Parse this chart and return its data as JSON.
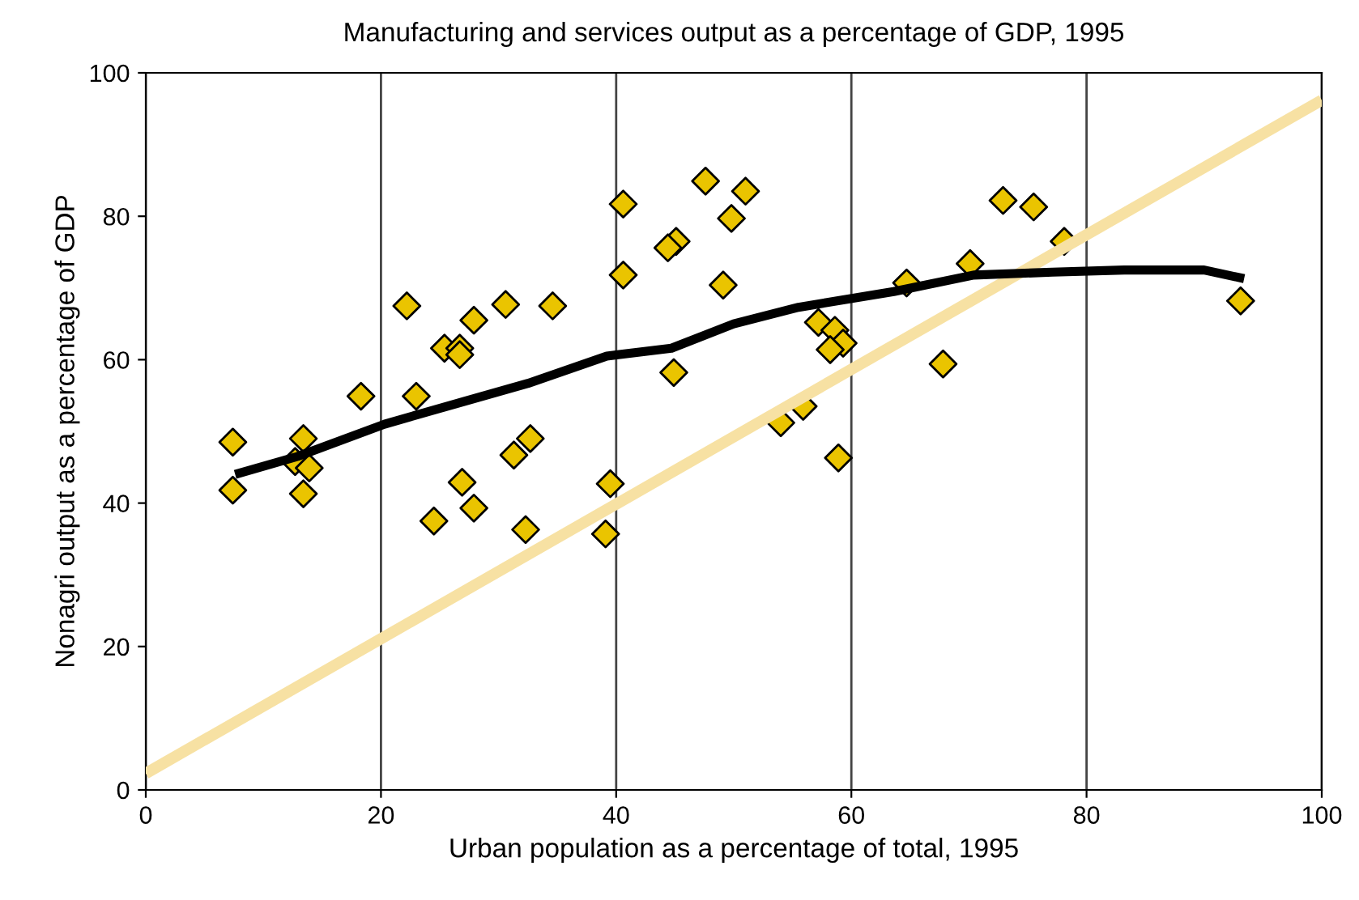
{
  "chart_data": {
    "type": "scatter",
    "title": "Manufacturing and services output as a percentage of GDP, 1995",
    "xlabel": "Urban population as a percentage of total, 1995",
    "ylabel": "Nonagri output as a percentage of GDP",
    "xlim": [
      0,
      100
    ],
    "ylim": [
      0,
      100
    ],
    "xticks": [
      0,
      20,
      40,
      60,
      80,
      100
    ],
    "yticks": [
      0,
      20,
      40,
      60,
      80,
      100
    ],
    "grid": "x",
    "marker": "diamond",
    "series": [
      {
        "color": "#eac400",
        "x": [
          7.4,
          7.4,
          13.4,
          12.7,
          13.9,
          13.4,
          18.3,
          23.0,
          22.2,
          27.9,
          30.6,
          25.4,
          26.7,
          26.7,
          32.7,
          31.3,
          26.9,
          27.9,
          24.5,
          32.3,
          40.6,
          47.6,
          51.0,
          49.8,
          45.1,
          44.4,
          40.6,
          49.1,
          34.6,
          57.2,
          58.6,
          59.3,
          58.2,
          44.9,
          55.9,
          54.0,
          58.9,
          39.5,
          39.1,
          64.7,
          72.9,
          75.5,
          78.1,
          70.1,
          67.8,
          93.1
        ],
        "values": [
          48.5,
          41.8,
          49.0,
          45.8,
          44.9,
          41.3,
          54.9,
          54.9,
          67.5,
          65.5,
          67.7,
          61.6,
          61.6,
          60.7,
          49.0,
          46.7,
          42.9,
          39.3,
          37.5,
          36.3,
          81.7,
          84.9,
          83.5,
          79.7,
          76.5,
          75.6,
          71.8,
          70.4,
          67.5,
          65.2,
          64.1,
          62.3,
          61.4,
          58.2,
          53.5,
          51.2,
          46.3,
          42.7,
          35.7,
          70.7,
          82.2,
          81.3,
          76.5,
          73.4,
          59.4,
          68.2
        ]
      },
      {
        "type": "line",
        "color": "#f7e1a3",
        "marker": "none",
        "x": [
          0,
          100
        ],
        "values": [
          2.3,
          96.2
        ]
      },
      {
        "type": "line",
        "color": "#000000",
        "marker": "none",
        "x": [
          7.6,
          12.9,
          20.3,
          27.1,
          32.5,
          39.2,
          44.7,
          50.0,
          55.5,
          63.6,
          70.4,
          77.1,
          83.2,
          90.0,
          93.4
        ],
        "values": [
          44.0,
          46.5,
          51.0,
          54.2,
          56.7,
          60.5,
          61.6,
          65.0,
          67.3,
          69.5,
          71.8,
          72.2,
          72.5,
          72.5,
          71.3
        ]
      }
    ]
  }
}
